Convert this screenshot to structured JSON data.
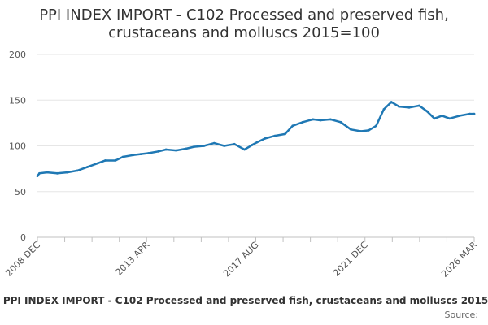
{
  "title": {
    "line1": "PPI INDEX IMPORT - C102 Processed and preserved fish,",
    "line2": "crustaceans and molluscs 2015=100"
  },
  "series_color": "#1f78b4",
  "footer": {
    "legend_label": "PPI INDEX IMPORT - C102 Processed and preserved fish, crustaceans and molluscs 2015",
    "source_label": "Source:"
  },
  "chart_data": {
    "type": "line",
    "title": "PPI INDEX IMPORT - C102 Processed and preserved fish, crustaceans and molluscs 2015=100",
    "xlabel": "",
    "ylabel": "",
    "ylim": [
      0,
      200
    ],
    "yticks": [
      0,
      50,
      100,
      150,
      200
    ],
    "x_tick_labels": [
      "2008 DEC",
      "2013 APR",
      "2017 AUG",
      "2021 DEC",
      "2026 MAR"
    ],
    "x_range": [
      "2008 DEC",
      "2026 MAR"
    ],
    "grid": "horizontal",
    "legend": "bottom",
    "series": [
      {
        "name": "PPI INDEX IMPORT - C102 Processed and preserved fish, crustaceans and molluscs 2015",
        "x": [
          2008.92,
          2009.0,
          2009.3,
          2009.7,
          2010.1,
          2010.5,
          2010.9,
          2011.3,
          2011.6,
          2012.0,
          2012.3,
          2012.7,
          2013.0,
          2013.3,
          2013.7,
          2014.0,
          2014.4,
          2014.8,
          2015.1,
          2015.5,
          2015.9,
          2016.3,
          2016.7,
          2017.1,
          2017.4,
          2017.6,
          2017.9,
          2018.3,
          2018.7,
          2019.0,
          2019.4,
          2019.8,
          2020.1,
          2020.5,
          2020.9,
          2021.3,
          2021.7,
          2022.0,
          2022.3,
          2022.6,
          2022.9,
          2023.2,
          2023.6,
          2024.0,
          2024.3,
          2024.6,
          2024.9,
          2025.2,
          2025.6,
          2026.0,
          2026.17
        ],
        "values": [
          67,
          70,
          71,
          70,
          71,
          73,
          77,
          81,
          84,
          84,
          88,
          90,
          91,
          92,
          94,
          96,
          95,
          97,
          99,
          100,
          103,
          100,
          102,
          96,
          101,
          104,
          108,
          111,
          113,
          122,
          126,
          129,
          128,
          129,
          126,
          118,
          116,
          117,
          122,
          140,
          148,
          143,
          142,
          144,
          138,
          130,
          133,
          130,
          133,
          135,
          135
        ]
      }
    ]
  }
}
